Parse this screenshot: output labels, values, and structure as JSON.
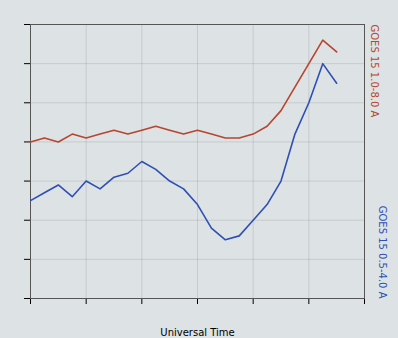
{
  "chart_data": {
    "type": "line",
    "xlabel": "Universal Time",
    "x": [
      0,
      1,
      2,
      3,
      4,
      5,
      6,
      7,
      8,
      9,
      10,
      11,
      12,
      13,
      14,
      15,
      16,
      17,
      18,
      19,
      20,
      21,
      22
    ],
    "series": [
      {
        "name": "GOES 15 1.0-8.0 A",
        "color": "#b8452f",
        "values": [
          4.0,
          4.1,
          4.0,
          4.2,
          4.1,
          4.2,
          4.3,
          4.2,
          4.3,
          4.4,
          4.3,
          4.2,
          4.3,
          4.2,
          4.1,
          4.1,
          4.2,
          4.4,
          4.8,
          5.4,
          6.0,
          6.6,
          6.3
        ]
      },
      {
        "name": "GOES 15 0.5-4.0 A",
        "color": "#2f4fb5",
        "values": [
          2.5,
          2.7,
          2.9,
          2.6,
          3.0,
          2.8,
          3.1,
          3.2,
          3.5,
          3.3,
          3.0,
          2.8,
          2.4,
          1.8,
          1.5,
          1.6,
          2.0,
          2.4,
          3.0,
          4.2,
          5.0,
          6.0,
          5.5
        ]
      }
    ],
    "xlim": [
      0,
      24
    ],
    "xticks": [
      0,
      4,
      8,
      12,
      16,
      20,
      24
    ],
    "ylim": [
      0,
      7
    ],
    "yticks": [
      0,
      1,
      2,
      3,
      4,
      5,
      6,
      7
    ],
    "grid": true,
    "legend": "right",
    "tick_labels": false
  }
}
